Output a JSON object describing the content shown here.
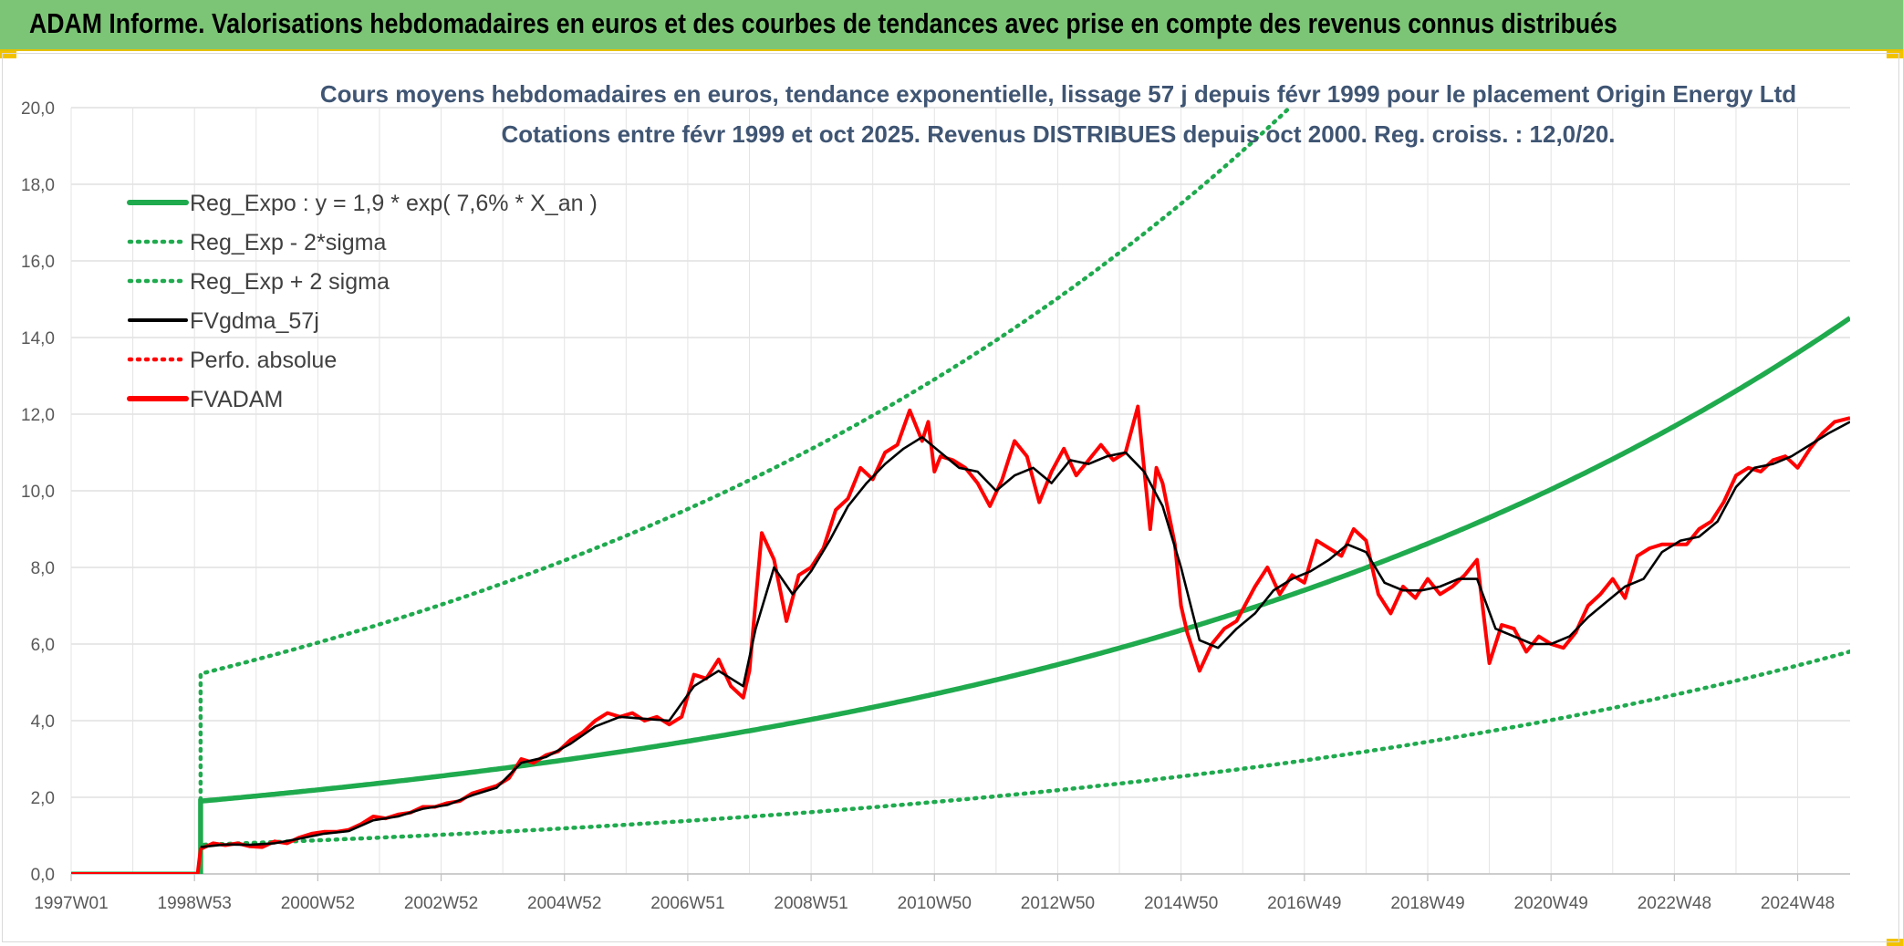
{
  "banner": {
    "title": "ADAM Informe. Valorisations hebdomadaires en euros et des courbes de tendances avec prise en compte des revenus connus distribués"
  },
  "colors": {
    "banner_bg": "#7cc576",
    "trend_green": "#1faa4e",
    "fvgdma_black": "#000000",
    "fvadam_red": "#ff0000",
    "grid": "#d9d9d9"
  },
  "chart_data": {
    "type": "line",
    "title_lines": [
      "Cours moyens hebdomadaires en euros, tendance exponentielle, lissage 57 j depuis févr 1999 pour le placement Origin Energy Ltd",
      "Cotations entre févr 1999 et oct 2025. Revenus DISTRIBUES depuis oct 2000. Reg. croiss. : 12,0/20."
    ],
    "x_ticks": [
      "1997W01",
      "1998W53",
      "2000W52",
      "2002W52",
      "2004W52",
      "2006W51",
      "2008W51",
      "2010W50",
      "2012W50",
      "2014W50",
      "2016W49",
      "2018W49",
      "2020W49",
      "2022W48",
      "2024W48"
    ],
    "x_tick_years": [
      1997.0,
      1999.0,
      2001.0,
      2003.0,
      2005.0,
      2007.0,
      2009.0,
      2011.0,
      2013.0,
      2015.0,
      2017.0,
      2019.0,
      2021.0,
      2023.0,
      2025.0
    ],
    "x_range": [
      1997.0,
      2025.85
    ],
    "ylim": [
      0,
      20
    ],
    "y_ticks": [
      "0,0",
      "2,0",
      "4,0",
      "6,0",
      "8,0",
      "10,0",
      "12,0",
      "14,0",
      "16,0",
      "18,0",
      "20,0"
    ],
    "grid": true,
    "legend_position": "top-left",
    "legend": [
      {
        "label": "Reg_Expo : y = 1,9 * exp( 7,6% *  X_an )",
        "color": "#1faa4e",
        "style": "solid-thick"
      },
      {
        "label": "Reg_Exp - 2*sigma",
        "color": "#1faa4e",
        "style": "dotted"
      },
      {
        "label": "Reg_Exp + 2 sigma",
        "color": "#1faa4e",
        "style": "dotted"
      },
      {
        "label": "FVgdma_57j",
        "color": "#000000",
        "style": "solid"
      },
      {
        "label": "Perfo. absolue",
        "color": "#ff0000",
        "style": "dotted"
      },
      {
        "label": "FVADAM",
        "color": "#ff0000",
        "style": "solid-thick"
      }
    ],
    "regression": {
      "start_year": 1999.1,
      "end_year": 2025.85,
      "y_start": 1.9,
      "growth_rate": 0.076,
      "minus_2sigma_factor": 0.4,
      "plus_2sigma_factor": 2.75
    },
    "series_fvadam": {
      "x": [
        1997.0,
        1999.05,
        1999.1,
        1999.3,
        1999.5,
        1999.7,
        1999.9,
        2000.1,
        2000.3,
        2000.5,
        2000.7,
        2000.9,
        2001.1,
        2001.3,
        2001.5,
        2001.7,
        2001.9,
        2002.1,
        2002.3,
        2002.5,
        2002.7,
        2002.9,
        2003.1,
        2003.3,
        2003.5,
        2003.7,
        2003.9,
        2004.1,
        2004.3,
        2004.5,
        2004.7,
        2004.9,
        2005.1,
        2005.3,
        2005.5,
        2005.7,
        2005.9,
        2006.1,
        2006.3,
        2006.5,
        2006.7,
        2006.9,
        2007.1,
        2007.3,
        2007.5,
        2007.7,
        2007.9,
        2008.0,
        2008.2,
        2008.4,
        2008.6,
        2008.8,
        2009.0,
        2009.2,
        2009.4,
        2009.6,
        2009.8,
        2010.0,
        2010.2,
        2010.4,
        2010.6,
        2010.8,
        2010.9,
        2011.0,
        2011.1,
        2011.3,
        2011.5,
        2011.7,
        2011.9,
        2012.1,
        2012.3,
        2012.5,
        2012.7,
        2012.9,
        2013.1,
        2013.3,
        2013.5,
        2013.7,
        2013.9,
        2014.1,
        2014.3,
        2014.5,
        2014.6,
        2014.7,
        2014.9,
        2015.0,
        2015.1,
        2015.3,
        2015.5,
        2015.7,
        2015.9,
        2016.0,
        2016.2,
        2016.4,
        2016.6,
        2016.8,
        2017.0,
        2017.2,
        2017.4,
        2017.6,
        2017.8,
        2018.0,
        2018.2,
        2018.4,
        2018.6,
        2018.8,
        2019.0,
        2019.2,
        2019.4,
        2019.6,
        2019.8,
        2020.0,
        2020.2,
        2020.4,
        2020.6,
        2020.8,
        2021.0,
        2021.2,
        2021.4,
        2021.6,
        2021.8,
        2022.0,
        2022.2,
        2022.4,
        2022.6,
        2022.8,
        2023.0,
        2023.2,
        2023.4,
        2023.6,
        2023.8,
        2024.0,
        2024.2,
        2024.4,
        2024.6,
        2024.8,
        2025.0,
        2025.2,
        2025.4,
        2025.6,
        2025.85
      ],
      "y": [
        0.0,
        0.0,
        0.65,
        0.8,
        0.75,
        0.8,
        0.72,
        0.7,
        0.85,
        0.8,
        0.95,
        1.05,
        1.1,
        1.1,
        1.15,
        1.3,
        1.5,
        1.45,
        1.55,
        1.6,
        1.75,
        1.75,
        1.85,
        1.9,
        2.1,
        2.2,
        2.3,
        2.5,
        3.0,
        2.9,
        3.1,
        3.2,
        3.5,
        3.7,
        4.0,
        4.2,
        4.1,
        4.2,
        4.0,
        4.1,
        3.9,
        4.1,
        5.2,
        5.1,
        5.6,
        4.9,
        4.6,
        5.3,
        8.9,
        8.2,
        6.6,
        7.8,
        8.0,
        8.5,
        9.5,
        9.8,
        10.6,
        10.3,
        11.0,
        11.2,
        12.1,
        11.3,
        11.8,
        10.5,
        10.9,
        10.8,
        10.6,
        10.2,
        9.6,
        10.3,
        11.3,
        10.9,
        9.7,
        10.5,
        11.1,
        10.4,
        10.8,
        11.2,
        10.8,
        11.0,
        12.2,
        9.0,
        10.6,
        10.2,
        8.6,
        7.0,
        6.3,
        5.3,
        6.0,
        6.4,
        6.6,
        6.9,
        7.5,
        8.0,
        7.3,
        7.8,
        7.6,
        8.7,
        8.5,
        8.3,
        9.0,
        8.7,
        7.3,
        6.8,
        7.5,
        7.2,
        7.7,
        7.3,
        7.5,
        7.8,
        8.2,
        5.5,
        6.5,
        6.4,
        5.8,
        6.2,
        6.0,
        5.9,
        6.3,
        7.0,
        7.3,
        7.7,
        7.2,
        8.3,
        8.5,
        8.6,
        8.6,
        8.6,
        9.0,
        9.2,
        9.7,
        10.4,
        10.6,
        10.5,
        10.8,
        10.9,
        10.6,
        11.1,
        11.5,
        11.8,
        11.9
      ]
    },
    "series_fvgdma_57j": {
      "x": [
        1999.1,
        1999.5,
        1999.9,
        2000.3,
        2000.7,
        2001.1,
        2001.5,
        2001.9,
        2002.3,
        2002.7,
        2003.1,
        2003.5,
        2003.9,
        2004.3,
        2004.7,
        2005.1,
        2005.5,
        2005.9,
        2006.3,
        2006.7,
        2007.1,
        2007.5,
        2007.9,
        2008.1,
        2008.4,
        2008.7,
        2009.0,
        2009.3,
        2009.6,
        2009.9,
        2010.2,
        2010.5,
        2010.8,
        2011.1,
        2011.4,
        2011.7,
        2012.0,
        2012.3,
        2012.6,
        2012.9,
        2013.2,
        2013.5,
        2013.8,
        2014.1,
        2014.4,
        2014.7,
        2015.0,
        2015.3,
        2015.6,
        2015.9,
        2016.2,
        2016.5,
        2016.8,
        2017.1,
        2017.4,
        2017.7,
        2018.0,
        2018.3,
        2018.6,
        2018.9,
        2019.2,
        2019.5,
        2019.8,
        2020.1,
        2020.4,
        2020.7,
        2021.0,
        2021.3,
        2021.6,
        2021.9,
        2022.2,
        2022.5,
        2022.8,
        2023.1,
        2023.4,
        2023.7,
        2024.0,
        2024.3,
        2024.6,
        2024.9,
        2025.2,
        2025.5,
        2025.85
      ],
      "y": [
        0.7,
        0.77,
        0.76,
        0.8,
        0.92,
        1.05,
        1.12,
        1.4,
        1.5,
        1.7,
        1.8,
        2.05,
        2.25,
        2.9,
        3.05,
        3.4,
        3.85,
        4.1,
        4.05,
        4.0,
        4.9,
        5.3,
        4.9,
        6.4,
        8.0,
        7.3,
        7.9,
        8.7,
        9.6,
        10.2,
        10.7,
        11.1,
        11.4,
        11.0,
        10.6,
        10.5,
        10.0,
        10.4,
        10.6,
        10.2,
        10.8,
        10.7,
        10.9,
        11.0,
        10.5,
        9.6,
        8.0,
        6.1,
        5.9,
        6.4,
        6.8,
        7.4,
        7.7,
        7.9,
        8.2,
        8.6,
        8.4,
        7.6,
        7.4,
        7.4,
        7.5,
        7.7,
        7.7,
        6.4,
        6.2,
        6.0,
        6.0,
        6.2,
        6.7,
        7.1,
        7.5,
        7.7,
        8.4,
        8.7,
        8.8,
        9.2,
        10.1,
        10.6,
        10.7,
        10.9,
        11.2,
        11.5,
        11.8
      ]
    }
  }
}
